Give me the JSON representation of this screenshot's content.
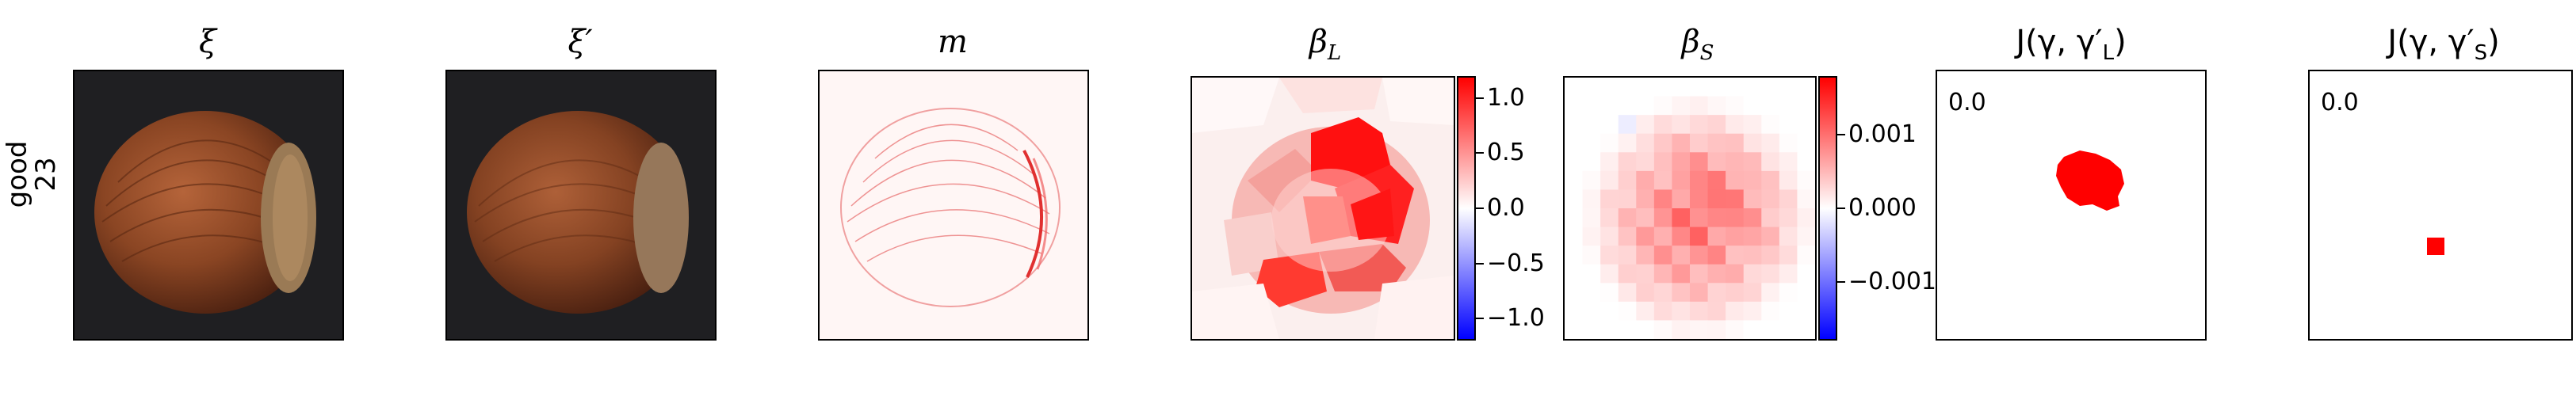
{
  "row_label": {
    "class": "good",
    "index": "23"
  },
  "panels": [
    {
      "id": "xi",
      "title": "ξ"
    },
    {
      "id": "xi_prime",
      "title": "ξ′"
    },
    {
      "id": "m",
      "title": "m"
    },
    {
      "id": "beta_L",
      "title": "βL",
      "title_main": "β",
      "title_sub": "L"
    },
    {
      "id": "beta_S",
      "title": "βS",
      "title_main": "β",
      "title_sub": "S"
    },
    {
      "id": "J_L",
      "title": "J(γ, γ′L)",
      "title_prefix": "J(γ, γ′",
      "title_sub": "L",
      "title_suffix": ")",
      "score": "0.0"
    },
    {
      "id": "J_S",
      "title": "J(γ, γ′S)",
      "title_prefix": "J(γ, γ′",
      "title_sub": "S",
      "title_suffix": ")",
      "score": "0.0"
    }
  ],
  "colorbar_L": {
    "ticks": [
      "1.0",
      "0.5",
      "0.0",
      "−0.5",
      "−1.0"
    ],
    "tick_values": [
      1.0,
      0.5,
      0.0,
      -0.5,
      -1.0
    ],
    "range": [
      -1.2,
      1.2
    ]
  },
  "colorbar_S": {
    "ticks": [
      "0.001",
      "0.000",
      "−0.001"
    ],
    "tick_values": [
      0.001,
      0.0,
      -0.001
    ],
    "range": [
      -0.0018,
      0.0018
    ]
  },
  "colors": {
    "neg": "#0000ff",
    "zero": "#ffffff",
    "pos": "#ff0000",
    "image_bg": "#1f1f21",
    "nut": "#8a4523"
  }
}
